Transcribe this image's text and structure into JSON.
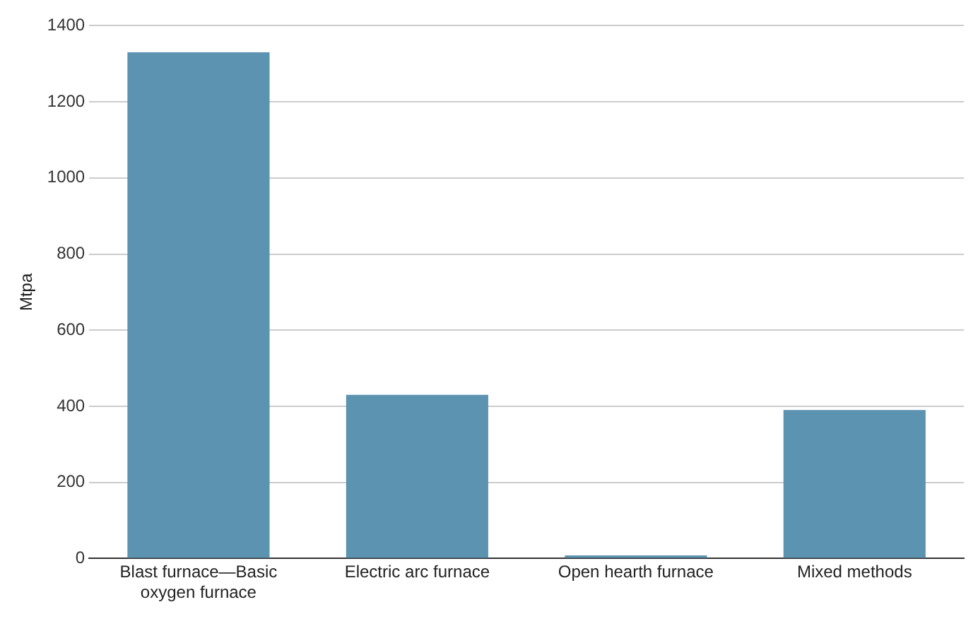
{
  "chart_data": {
    "type": "bar",
    "ylabel": "Mtpa",
    "categories": [
      "Blast furnace—Basic oxygen furnace",
      "Electric arc furnace",
      "Open hearth furnace",
      "Mixed methods"
    ],
    "values": [
      1330,
      430,
      8,
      390
    ],
    "color": "#5b93b0",
    "ylim": [
      0,
      1400
    ],
    "yticks": [
      0,
      200,
      400,
      600,
      800,
      1000,
      1200,
      1400
    ],
    "grid": "y",
    "legend": false
  }
}
